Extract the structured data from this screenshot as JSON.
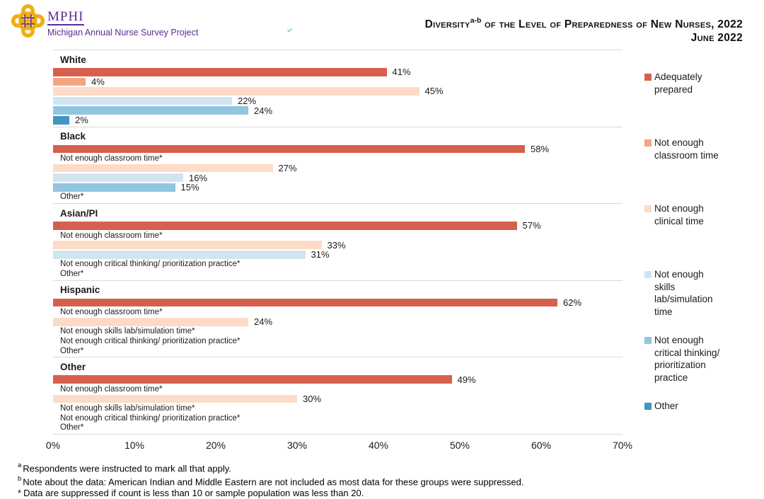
{
  "header": {
    "logo": {
      "acronym": "MPHI",
      "subtitle": "Michigan Annual Nurse Survey Project"
    },
    "title": {
      "word": "Diversity",
      "superscript": "a-b",
      "rest": " of the Level of Preparedness of New Nurses, 2022",
      "date": "June 2022"
    }
  },
  "legend": [
    {
      "label": "Adequately\nprepared",
      "color": "#d6604d"
    },
    {
      "label": "Not enough\nclassroom time",
      "color": "#f4a582"
    },
    {
      "label": "Not enough\nclinical time",
      "color": "#fddbc7"
    },
    {
      "label": "Not enough\nskills\nlab/simulation\ntime",
      "color": "#d1e5f0"
    },
    {
      "label": "Not enough\ncritical thinking/\nprioritization\npractice",
      "color": "#92c5de"
    },
    {
      "label": "Other",
      "color": "#4393c3"
    }
  ],
  "chart_data": {
    "type": "bar",
    "orientation": "horizontal",
    "title": "Diversity (a-b) of the Level of Preparedness of New Nurses, 2022",
    "subtitle": "June 2022",
    "xlim": [
      0,
      70
    ],
    "x_ticks": [
      "0%",
      "10%",
      "20%",
      "30%",
      "40%",
      "50%",
      "60%",
      "70%"
    ],
    "grid": false,
    "legend_position": "right",
    "series": [
      "Adequately prepared",
      "Not enough classroom time",
      "Not enough clinical time",
      "Not enough skills lab/simulation time",
      "Not enough critical thinking/ prioritization practice",
      "Other"
    ],
    "groups": [
      {
        "category": "White",
        "bars": [
          {
            "value": 41,
            "label": "41%"
          },
          {
            "value": 4,
            "label": "4%"
          },
          {
            "value": 45,
            "label": "45%"
          },
          {
            "value": 22,
            "label": "22%"
          },
          {
            "value": 24,
            "label": "24%"
          },
          {
            "value": 2,
            "label": "2%"
          }
        ]
      },
      {
        "category": "Black",
        "bars": [
          {
            "value": 58,
            "label": "58%"
          },
          {
            "suppressed": true,
            "label": "Not enough classroom time*"
          },
          {
            "value": 27,
            "label": "27%"
          },
          {
            "value": 16,
            "label": "16%"
          },
          {
            "value": 15,
            "label": "15%"
          },
          {
            "suppressed": true,
            "label": "Other*"
          }
        ]
      },
      {
        "category": "Asian/PI",
        "bars": [
          {
            "value": 57,
            "label": "57%"
          },
          {
            "suppressed": true,
            "label": "Not enough classroom time*"
          },
          {
            "value": 33,
            "label": "33%"
          },
          {
            "value": 31,
            "label": "31%"
          },
          {
            "suppressed": true,
            "label": "Not enough critical thinking/ prioritization practice*"
          },
          {
            "suppressed": true,
            "label": "Other*"
          }
        ]
      },
      {
        "category": "Hispanic",
        "bars": [
          {
            "value": 62,
            "label": "62%"
          },
          {
            "suppressed": true,
            "label": "Not enough classroom time*"
          },
          {
            "value": 24,
            "label": "24%"
          },
          {
            "suppressed": true,
            "label": "Not enough skills lab/simulation time*"
          },
          {
            "suppressed": true,
            "label": "Not enough critical thinking/ prioritization practice*"
          },
          {
            "suppressed": true,
            "label": "Other*"
          }
        ]
      },
      {
        "category": "Other",
        "bars": [
          {
            "value": 49,
            "label": "49%"
          },
          {
            "suppressed": true,
            "label": "Not enough classroom time*"
          },
          {
            "value": 30,
            "label": "30%"
          },
          {
            "suppressed": true,
            "label": "Not enough skills lab/simulation time*"
          },
          {
            "suppressed": true,
            "label": "Not enough critical thinking/ prioritization practice*"
          },
          {
            "suppressed": true,
            "label": "Other*"
          }
        ]
      }
    ]
  },
  "footnotes": [
    {
      "marker": "a",
      "text": "Respondents were instructed to mark all that apply."
    },
    {
      "marker": "b",
      "text": "Note about the data: American Indian and Middle Eastern are not included as most data for these groups were suppressed."
    },
    {
      "marker": "*",
      "text": "Data are suppressed if count is less than 10 or sample population was less than 20."
    }
  ],
  "brand_colors": {
    "purple": "#5b2d90",
    "gold": "#edaf10"
  }
}
